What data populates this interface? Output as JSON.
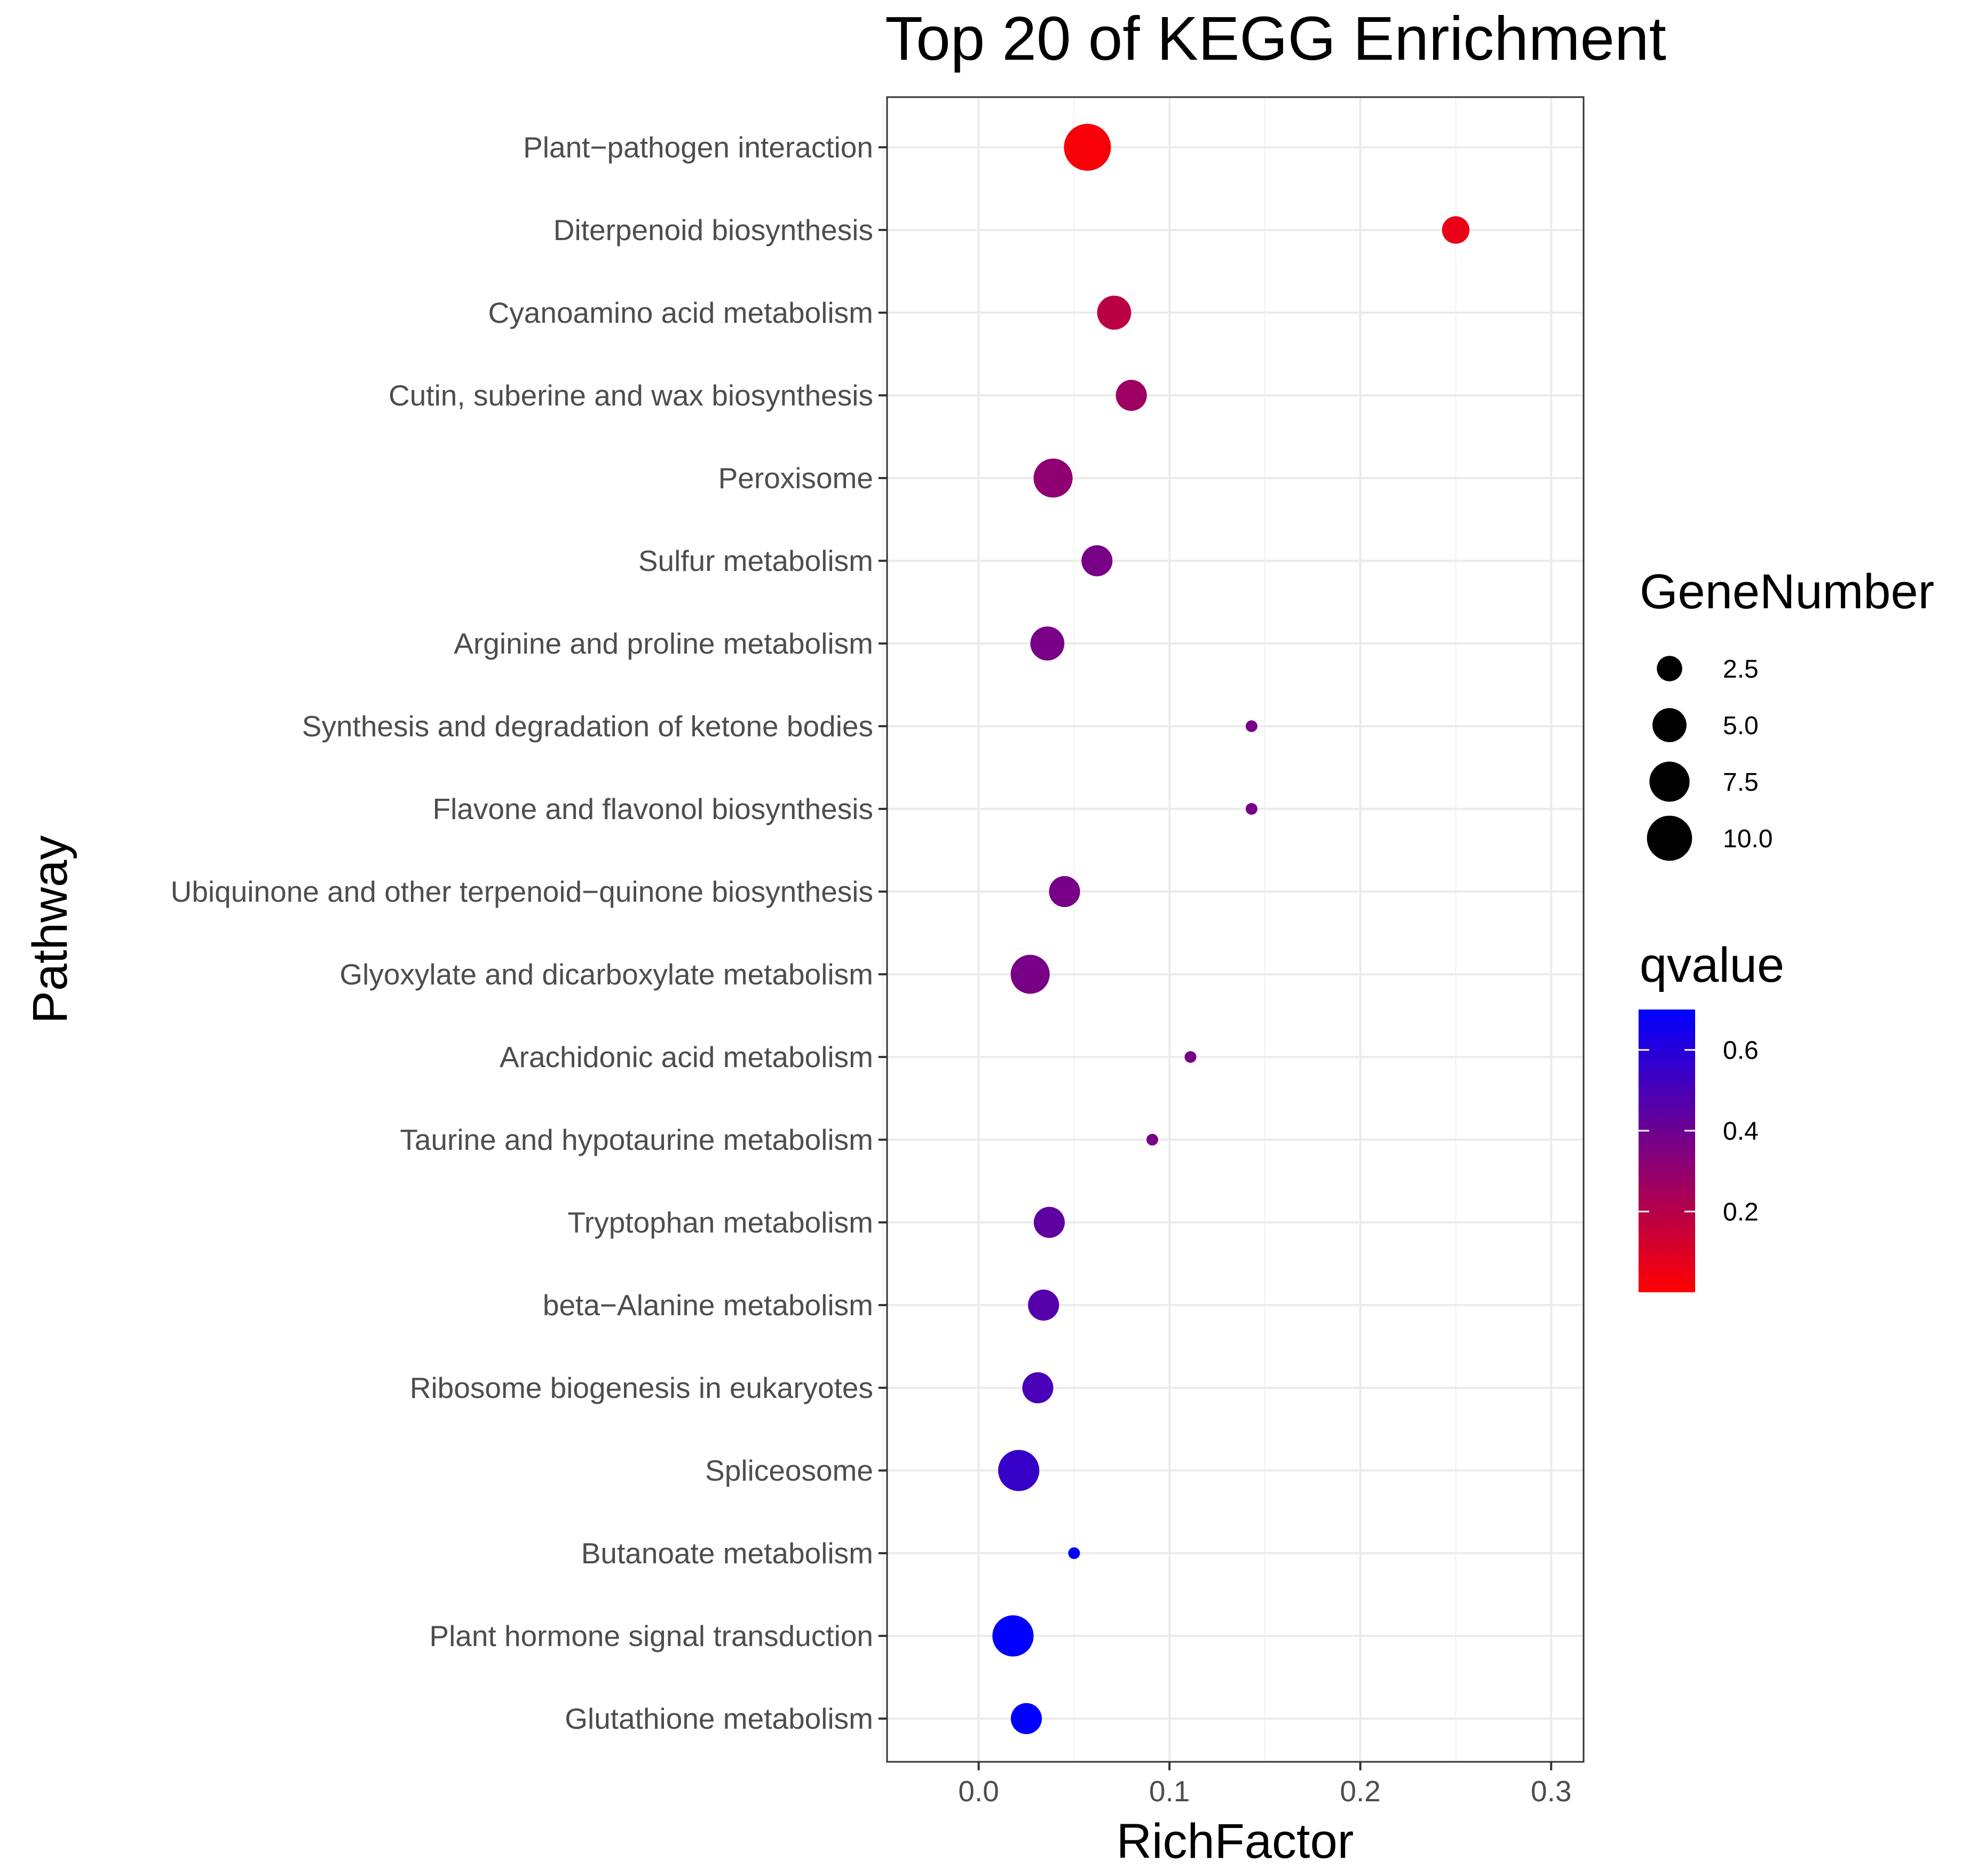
{
  "chart_data": {
    "type": "scatter",
    "title": "Top 20 of KEGG Enrichment",
    "xlabel": "RichFactor",
    "ylabel": "Pathway",
    "xlim": [
      -0.048,
      0.317
    ],
    "x_ticks": [
      0.0,
      0.1,
      0.2,
      0.3
    ],
    "x_tick_labels": [
      "0.0",
      "0.1",
      "0.2",
      "0.3"
    ],
    "grid": true,
    "points": [
      {
        "pathway": "Plant−pathogen interaction",
        "rich_factor": 0.057,
        "gene_number": 11,
        "qvalue": 0.02
      },
      {
        "pathway": "Diterpenoid biosynthesis",
        "rich_factor": 0.25,
        "gene_number": 3,
        "qvalue": 0.06
      },
      {
        "pathway": "Cyanoamino acid metabolism",
        "rich_factor": 0.071,
        "gene_number": 5,
        "qvalue": 0.19
      },
      {
        "pathway": "Cutin, suberine and wax biosynthesis",
        "rich_factor": 0.08,
        "gene_number": 4,
        "qvalue": 0.27
      },
      {
        "pathway": "Peroxisome",
        "rich_factor": 0.039,
        "gene_number": 7,
        "qvalue": 0.31
      },
      {
        "pathway": "Sulfur metabolism",
        "rich_factor": 0.062,
        "gene_number": 4,
        "qvalue": 0.37
      },
      {
        "pathway": "Arginine and proline metabolism",
        "rich_factor": 0.036,
        "gene_number": 5,
        "qvalue": 0.37
      },
      {
        "pathway": "Synthesis and degradation of ketone bodies",
        "rich_factor": 0.143,
        "gene_number": 1,
        "qvalue": 0.37
      },
      {
        "pathway": "Flavone and flavonol biosynthesis",
        "rich_factor": 0.143,
        "gene_number": 1,
        "qvalue": 0.37
      },
      {
        "pathway": "Ubiquinone and other terpenoid−quinone biosynthesis",
        "rich_factor": 0.045,
        "gene_number": 4,
        "qvalue": 0.37
      },
      {
        "pathway": "Glyoxylate and dicarboxylate metabolism",
        "rich_factor": 0.027,
        "gene_number": 7,
        "qvalue": 0.37
      },
      {
        "pathway": "Arachidonic acid metabolism",
        "rich_factor": 0.111,
        "gene_number": 1,
        "qvalue": 0.37
      },
      {
        "pathway": "Taurine and hypotaurine metabolism",
        "rich_factor": 0.091,
        "gene_number": 1,
        "qvalue": 0.37
      },
      {
        "pathway": "Tryptophan metabolism",
        "rich_factor": 0.037,
        "gene_number": 4,
        "qvalue": 0.44
      },
      {
        "pathway": "beta−Alanine metabolism",
        "rich_factor": 0.034,
        "gene_number": 4,
        "qvalue": 0.47
      },
      {
        "pathway": "Ribosome biogenesis in eukaryotes",
        "rich_factor": 0.031,
        "gene_number": 4,
        "qvalue": 0.5
      },
      {
        "pathway": "Spliceosome",
        "rich_factor": 0.021,
        "gene_number": 8,
        "qvalue": 0.55
      },
      {
        "pathway": "Butanoate metabolism",
        "rich_factor": 0.05,
        "gene_number": 1,
        "qvalue": 0.71
      },
      {
        "pathway": "Plant hormone signal transduction",
        "rich_factor": 0.018,
        "gene_number": 8,
        "qvalue": 0.71
      },
      {
        "pathway": "Glutathione metabolism",
        "rich_factor": 0.025,
        "gene_number": 4,
        "qvalue": 0.71
      }
    ],
    "legend": {
      "size": {
        "title": "GeneNumber",
        "breaks": [
          2.5,
          5.0,
          7.5,
          10.0
        ],
        "labels": [
          "2.5",
          "5.0",
          "7.5",
          "10.0"
        ]
      },
      "color": {
        "title": "qvalue",
        "range": [
          0.0,
          0.7
        ],
        "breaks": [
          0.6,
          0.4,
          0.2
        ],
        "labels": [
          "0.6",
          "0.4",
          "0.2"
        ],
        "low_color": "#ff0000",
        "high_color": "#0000ff"
      }
    }
  }
}
